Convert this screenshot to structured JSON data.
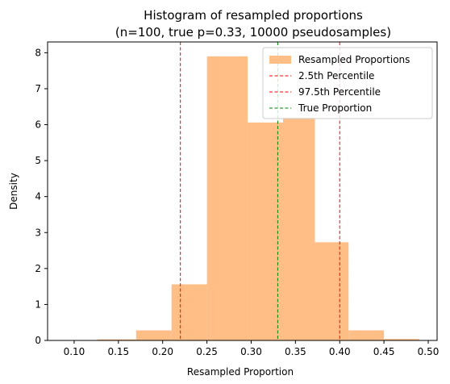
{
  "chart_data": {
    "type": "bar",
    "title_line1": "Histogram of resampled proportions",
    "title_line2": "(n=100, true p=0.33, 10000 pseudosamples)",
    "xlabel": "Resampled Proportion",
    "ylabel": "Density",
    "xlim": [
      0.07,
      0.51
    ],
    "ylim": [
      0,
      8.3
    ],
    "xticks": [
      0.1,
      0.15,
      0.2,
      0.25,
      0.3,
      0.35,
      0.4,
      0.45,
      0.5
    ],
    "xtick_labels": [
      "0.10",
      "0.15",
      "0.20",
      "0.25",
      "0.30",
      "0.35",
      "0.40",
      "0.45",
      "0.50"
    ],
    "yticks": [
      0,
      1,
      2,
      3,
      4,
      5,
      6,
      7,
      8
    ],
    "ytick_labels": [
      "0",
      "1",
      "2",
      "3",
      "4",
      "5",
      "6",
      "7",
      "8"
    ],
    "bins": [
      {
        "x0": 0.082,
        "x1": 0.126,
        "density": 0.0
      },
      {
        "x0": 0.126,
        "x1": 0.17,
        "density": 0.03
      },
      {
        "x0": 0.17,
        "x1": 0.21,
        "density": 0.28
      },
      {
        "x0": 0.21,
        "x1": 0.25,
        "density": 1.56
      },
      {
        "x0": 0.25,
        "x1": 0.296,
        "density": 7.9
      },
      {
        "x0": 0.296,
        "x1": 0.336,
        "density": 6.06
      },
      {
        "x0": 0.336,
        "x1": 0.372,
        "density": 6.2
      },
      {
        "x0": 0.372,
        "x1": 0.41,
        "density": 2.73
      },
      {
        "x0": 0.41,
        "x1": 0.45,
        "density": 0.28
      },
      {
        "x0": 0.45,
        "x1": 0.49,
        "density": 0.04
      }
    ],
    "bar_color": "#ffbe86",
    "vlines": [
      {
        "name": "2.5th Percentile",
        "x": 0.22,
        "color": "#ff0000"
      },
      {
        "name": "97.5th Percentile",
        "x": 0.4,
        "color": "#ff0000"
      },
      {
        "name": "True Proportion",
        "x": 0.33,
        "color": "#008000"
      }
    ],
    "legend": {
      "placement": "top-right",
      "entries": [
        "Resampled Proportions",
        "2.5th Percentile",
        "97.5th Percentile",
        "True Proportion"
      ]
    },
    "grid": false
  }
}
